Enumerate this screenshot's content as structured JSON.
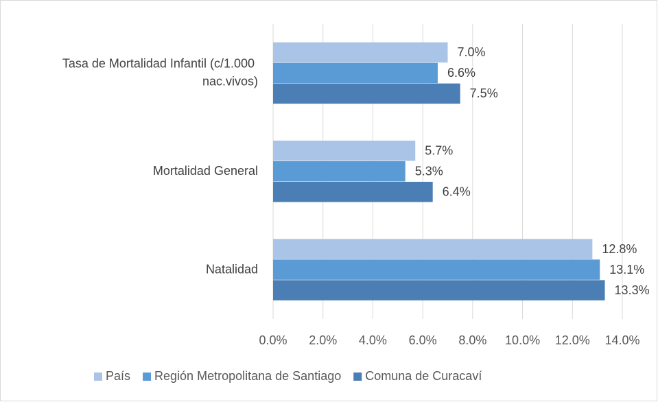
{
  "chart_data": {
    "type": "hbar",
    "categories": [
      "Tasa de Mortalidad Infantil (c/1.000 nac.vivos)",
      "Mortalidad General",
      "Natalidad"
    ],
    "series": [
      {
        "name": "País",
        "color": "#a9c4e6",
        "values": [
          7.0,
          5.7,
          12.8
        ],
        "value_labels": [
          "7.0%",
          "5.7%",
          "12.8%"
        ]
      },
      {
        "name": "Región Metropolitana de Santiago",
        "color": "#5b9bd5",
        "values": [
          6.6,
          5.3,
          13.1
        ],
        "value_labels": [
          "6.6%",
          "5.3%",
          "13.1%"
        ]
      },
      {
        "name": "Comuna de Curacaví",
        "color": "#4a7eb4",
        "values": [
          7.5,
          6.4,
          13.3
        ],
        "value_labels": [
          "7.5%",
          "6.4%",
          "13.3%"
        ]
      }
    ],
    "xlim": [
      0,
      14
    ],
    "xticks": [
      {
        "value": 0,
        "label": "0.0%"
      },
      {
        "value": 2,
        "label": "2.0%"
      },
      {
        "value": 4,
        "label": "4.0%"
      },
      {
        "value": 6,
        "label": "6.0%"
      },
      {
        "value": 8,
        "label": "8.0%"
      },
      {
        "value": 10,
        "label": "10.0%"
      },
      {
        "value": 12,
        "label": "12.0%"
      },
      {
        "value": 14,
        "label": "14.0%"
      }
    ],
    "grid": true,
    "legend": "bottom"
  }
}
